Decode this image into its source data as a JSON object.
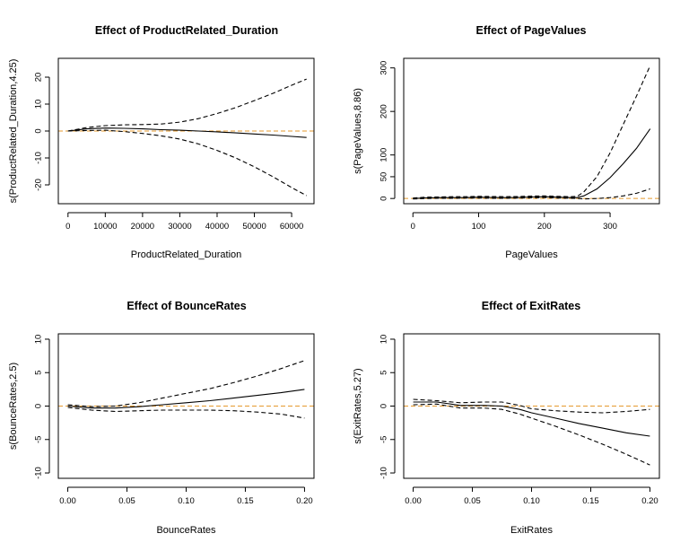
{
  "chart_data": [
    {
      "type": "line",
      "title": "Effect of ProductRelated_Duration",
      "xlabel": "ProductRelated_Duration",
      "ylabel": "s(ProductRelated_Duration,4.25)",
      "xlim": [
        -2600,
        66000
      ],
      "ylim": [
        -27,
        27
      ],
      "xticks": [
        0,
        10000,
        20000,
        30000,
        40000,
        50000,
        60000
      ],
      "yticks": [
        -20,
        -10,
        0,
        10,
        20
      ],
      "reference_line": 0,
      "x": [
        0,
        5000,
        10000,
        15000,
        20000,
        25000,
        30000,
        35000,
        40000,
        45000,
        50000,
        55000,
        60000,
        64000
      ],
      "series": [
        {
          "role": "fit",
          "values": [
            0,
            0.8,
            1.1,
            1.0,
            0.8,
            0.5,
            0.3,
            0.0,
            -0.3,
            -0.7,
            -1.1,
            -1.5,
            -2.0,
            -2.4
          ]
        },
        {
          "role": "upper",
          "values": [
            0,
            1.3,
            2.0,
            2.3,
            2.4,
            2.6,
            3.3,
            4.6,
            6.5,
            8.7,
            11.3,
            14.0,
            17.0,
            19.3
          ]
        },
        {
          "role": "lower",
          "values": [
            0,
            0.2,
            0.3,
            -0.2,
            -0.9,
            -1.8,
            -3.0,
            -4.8,
            -7.2,
            -10.0,
            -13.3,
            -17.0,
            -21.0,
            -24.0
          ]
        }
      ]
    },
    {
      "type": "line",
      "title": "Effect of PageValues",
      "xlabel": "PageValues",
      "ylabel": "s(PageValues,8.86)",
      "xlim": [
        -14,
        375
      ],
      "ylim": [
        -12,
        322
      ],
      "xticks": [
        0,
        100,
        200,
        300
      ],
      "yticks": [
        0,
        50,
        100,
        200,
        300
      ],
      "reference_line": 0,
      "x": [
        0,
        20,
        40,
        60,
        80,
        100,
        120,
        140,
        160,
        180,
        200,
        220,
        240,
        250,
        260,
        280,
        300,
        320,
        340,
        361
      ],
      "series": [
        {
          "role": "fit",
          "values": [
            0,
            1.5,
            2,
            2,
            2,
            3,
            2.5,
            2,
            2.5,
            3.5,
            4,
            3,
            2,
            2,
            6,
            22,
            48,
            80,
            115,
            160
          ]
        },
        {
          "role": "upper",
          "values": [
            1,
            3,
            3.5,
            4,
            4,
            5,
            4.5,
            4,
            4.5,
            5.5,
            6,
            5,
            4,
            5,
            15,
            50,
            105,
            170,
            235,
            305
          ]
        },
        {
          "role": "lower",
          "values": [
            -1,
            0,
            0.5,
            0.5,
            1,
            1,
            0.5,
            0.5,
            1,
            1.5,
            2,
            1,
            0.5,
            0,
            -1,
            0,
            2,
            6,
            12,
            22
          ]
        }
      ]
    },
    {
      "type": "line",
      "title": "Effect of BounceRates",
      "xlabel": "BounceRates",
      "ylabel": "s(BounceRates,2.5)",
      "xlim": [
        -0.008,
        0.208
      ],
      "ylim": [
        -10.8,
        10.8
      ],
      "xticks": [
        0.0,
        0.05,
        0.1,
        0.15,
        0.2
      ],
      "xtick_labels": [
        "0.00",
        "0.05",
        "0.10",
        "0.15",
        "0.20"
      ],
      "yticks": [
        -10,
        -5,
        0,
        5,
        10
      ],
      "reference_line": 0,
      "x": [
        0,
        0.02,
        0.04,
        0.06,
        0.08,
        0.1,
        0.12,
        0.14,
        0.16,
        0.18,
        0.2
      ],
      "series": [
        {
          "role": "fit",
          "values": [
            0,
            -0.3,
            -0.3,
            -0.1,
            0.2,
            0.5,
            0.8,
            1.2,
            1.6,
            2.0,
            2.5
          ]
        },
        {
          "role": "upper",
          "values": [
            0.2,
            -0.1,
            0.0,
            0.5,
            1.2,
            1.9,
            2.6,
            3.5,
            4.5,
            5.6,
            6.8
          ]
        },
        {
          "role": "lower",
          "values": [
            -0.2,
            -0.6,
            -0.8,
            -0.7,
            -0.6,
            -0.6,
            -0.6,
            -0.7,
            -0.9,
            -1.2,
            -1.8
          ]
        }
      ]
    },
    {
      "type": "line",
      "title": "Effect of ExitRates",
      "xlabel": "ExitRates",
      "ylabel": "s(ExitRates,5.27)",
      "xlim": [
        -0.008,
        0.208
      ],
      "ylim": [
        -10.8,
        10.8
      ],
      "xticks": [
        0.0,
        0.05,
        0.1,
        0.15,
        0.2
      ],
      "xtick_labels": [
        "0.00",
        "0.05",
        "0.10",
        "0.15",
        "0.20"
      ],
      "yticks": [
        -10,
        -5,
        0,
        5,
        10
      ],
      "reference_line": 0,
      "x": [
        0,
        0.02,
        0.04,
        0.06,
        0.075,
        0.09,
        0.1,
        0.12,
        0.14,
        0.16,
        0.18,
        0.2
      ],
      "series": [
        {
          "role": "fit",
          "values": [
            0.6,
            0.6,
            0.1,
            0.1,
            0.0,
            -0.5,
            -1.0,
            -1.8,
            -2.6,
            -3.3,
            -4.0,
            -4.5
          ]
        },
        {
          "role": "upper",
          "values": [
            1.0,
            0.8,
            0.5,
            0.6,
            0.6,
            0.1,
            -0.4,
            -0.7,
            -0.9,
            -1.0,
            -0.8,
            -0.5
          ]
        },
        {
          "role": "lower",
          "values": [
            0.2,
            0.3,
            -0.3,
            -0.3,
            -0.5,
            -1.2,
            -1.8,
            -3.0,
            -4.3,
            -5.7,
            -7.2,
            -8.8
          ]
        }
      ]
    }
  ],
  "colors": {
    "fit": "#000000",
    "confidence_band": "#000000",
    "reference_line": "#e59a2e",
    "frame": "#000000"
  }
}
